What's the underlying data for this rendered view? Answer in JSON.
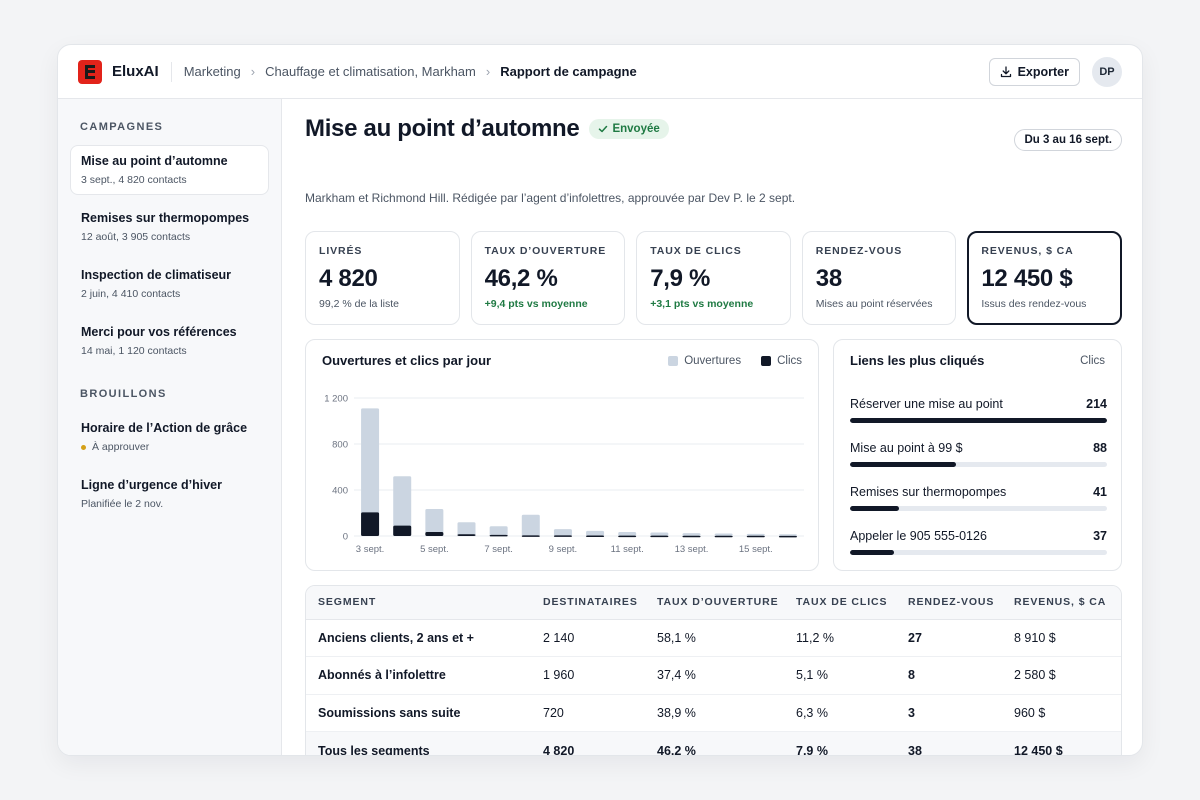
{
  "brand": {
    "name": "EluxAI"
  },
  "breadcrumb": [
    "Marketing",
    "Chauffage et climatisation, Markham",
    "Rapport de campagne"
  ],
  "header": {
    "export_label": "Exporter",
    "avatar_initials": "DP"
  },
  "sidebar": {
    "campaigns_heading": "CAMPAGNES",
    "campaigns": [
      {
        "title": "Mise au point d’automne",
        "sub": "3 sept., 4 820 contacts"
      },
      {
        "title": "Remises sur thermopompes",
        "sub": "12 août, 3 905 contacts"
      },
      {
        "title": "Inspection de climatiseur",
        "sub": "2 juin, 4 410 contacts"
      },
      {
        "title": "Merci pour vos références",
        "sub": "14 mai, 1 120 contacts"
      }
    ],
    "drafts_heading": "BROUILLONS",
    "drafts": [
      {
        "title": "Horaire de l’Action de grâce",
        "sub": "À approuver"
      },
      {
        "title": "Ligne d’urgence d’hiver",
        "sub": "Planifiée le 2 nov."
      }
    ]
  },
  "page": {
    "title": "Mise au point d’automne",
    "status": "Envoyée",
    "subtitle": "Markham et Richmond Hill. Rédigée par l’agent d’infolettres, approuvée par Dev P. le 2 sept.",
    "date_range": "Du 3 au 16 sept."
  },
  "kpis": [
    {
      "label": "LIVRÉS",
      "value": "4 820",
      "sub": "99,2 % de la liste",
      "trend": false
    },
    {
      "label": "TAUX D’OUVERTURE",
      "value": "46,2 %",
      "sub": "+9,4 pts vs moyenne",
      "trend": true
    },
    {
      "label": "TAUX DE CLICS",
      "value": "7,9 %",
      "sub": "+3,1 pts vs moyenne",
      "trend": true
    },
    {
      "label": "RENDEZ-VOUS",
      "value": "38",
      "sub": "Mises au point réservées",
      "trend": false
    },
    {
      "label": "REVENUS, $ CA",
      "value": "12 450 $",
      "sub": "Issus des rendez-vous",
      "trend": false
    }
  ],
  "chart": {
    "title": "Ouvertures et clics par jour",
    "legend": [
      "Ouvertures",
      "Clics"
    ],
    "colors": {
      "opens": "#cbd5e1",
      "clicks": "#111827"
    }
  },
  "chart_data": {
    "type": "bar",
    "title": "Ouvertures et clics par jour",
    "categories": [
      "3 sept.",
      "4 sept.",
      "5 sept.",
      "6 sept.",
      "7 sept.",
      "8 sept.",
      "9 sept.",
      "10 sept.",
      "11 sept.",
      "12 sept.",
      "13 sept.",
      "14 sept.",
      "15 sept.",
      "16 sept."
    ],
    "x_tick_labels": [
      "3 sept.",
      "5 sept.",
      "7 sept.",
      "9 sept.",
      "11 sept.",
      "13 sept.",
      "15 sept."
    ],
    "series": [
      {
        "name": "Ouvertures",
        "values": [
          1110,
          520,
          235,
          120,
          85,
          185,
          60,
          45,
          35,
          30,
          25,
          22,
          18,
          15
        ]
      },
      {
        "name": "Clics",
        "values": [
          205,
          90,
          35,
          15,
          10,
          5,
          5,
          4,
          3,
          3,
          2,
          2,
          2,
          1
        ]
      }
    ],
    "ylim": [
      0,
      1200
    ],
    "yticks": [
      "0",
      "400",
      "800",
      "1 200"
    ],
    "ytick_values": [
      0,
      400,
      800,
      1200
    ],
    "grid": true,
    "legend_position": "top-right"
  },
  "links": {
    "title": "Liens les plus cliqués",
    "right_label": "Clics",
    "max": 214,
    "items": [
      {
        "label": "Réserver une mise au point",
        "count": "214",
        "value": 214
      },
      {
        "label": "Mise au point à 99 $",
        "count": "88",
        "value": 88
      },
      {
        "label": "Remises sur thermopompes",
        "count": "41",
        "value": 41
      },
      {
        "label": "Appeler le 905 555-0126",
        "count": "37",
        "value": 37
      }
    ]
  },
  "table": {
    "headers": [
      "SEGMENT",
      "DESTINATAIRES",
      "TAUX D’OUVERTURE",
      "TAUX DE CLICS",
      "RENDEZ-VOUS",
      "REVENUS, $ CA"
    ],
    "rows": [
      [
        "Anciens clients, 2 ans et +",
        "2 140",
        "58,1 %",
        "11,2 %",
        "27",
        "8 910 $"
      ],
      [
        "Abonnés à l’infolettre",
        "1 960",
        "37,4 %",
        "5,1 %",
        "8",
        "2 580 $"
      ],
      [
        "Soumissions sans suite",
        "720",
        "38,9 %",
        "6,3 %",
        "3",
        "960 $"
      ]
    ],
    "total": [
      "Tous les segments",
      "4 820",
      "46,2 %",
      "7,9 %",
      "38",
      "12 450 $"
    ]
  }
}
